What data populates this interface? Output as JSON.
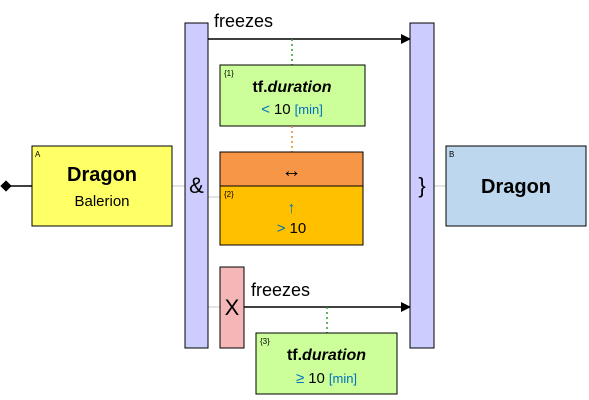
{
  "node_a": {
    "tag": "A",
    "title": "Dragon",
    "subtitle": "Balerion"
  },
  "node_b": {
    "tag": "B",
    "title": "Dragon"
  },
  "and_bar": {
    "symbol": "&"
  },
  "merge_bar": {
    "symbol": "}"
  },
  "xor_box": {
    "symbol": "X"
  },
  "top_edge": {
    "label": "freezes"
  },
  "bottom_edge": {
    "label": "freezes"
  },
  "cond1": {
    "tag": "{1}",
    "prefix": "tf.",
    "var": "duration",
    "op": "<",
    "value": "10",
    "unit": "[min]"
  },
  "orange": {
    "symbol": "↔",
    "tag": "{2}",
    "arrow": "↑",
    "op": ">",
    "value": "10"
  },
  "cond3": {
    "tag": "{3}",
    "prefix": "tf.",
    "var": "duration",
    "op": "≥",
    "value": "10",
    "unit": "[min]"
  },
  "colors": {
    "node_a_fill": "#ffff66",
    "node_b_fill": "#bdd7ee",
    "bar_fill": "#ccccff",
    "cond_fill": "#ccff99",
    "orange_top": "#f79646",
    "orange_bottom": "#ffc000",
    "xor_fill": "#f4b6b6",
    "blue_text": "#0070c0",
    "green_dots": "#2e9e2e",
    "orange_dots": "#e38b2d"
  }
}
